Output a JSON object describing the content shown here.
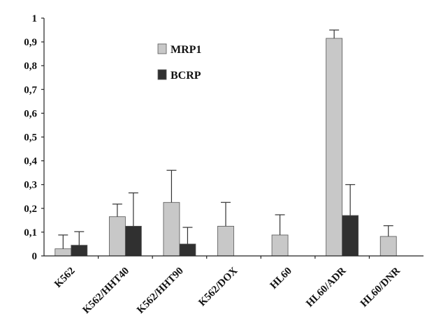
{
  "chart_data": {
    "type": "bar",
    "title": "",
    "xlabel": "",
    "ylabel": "",
    "ylim": [
      0,
      1
    ],
    "yticks": [
      {
        "value": 0,
        "label": "0"
      },
      {
        "value": 0.1,
        "label": "0,1"
      },
      {
        "value": 0.2,
        "label": "0,2"
      },
      {
        "value": 0.3,
        "label": "0,3"
      },
      {
        "value": 0.4,
        "label": "0,4"
      },
      {
        "value": 0.5,
        "label": "0,5"
      },
      {
        "value": 0.6,
        "label": "0,6"
      },
      {
        "value": 0.7,
        "label": "0,7"
      },
      {
        "value": 0.8,
        "label": "0,8"
      },
      {
        "value": 0.9,
        "label": "0,9"
      },
      {
        "value": 1,
        "label": "1"
      }
    ],
    "categories": [
      "K562",
      "K562/HHT40",
      "K562/HHT90",
      "K562/DOX",
      "HL60",
      "HL60/ADR",
      "HL60/DNR"
    ],
    "series": [
      {
        "name": "MRP1",
        "color": "#c8c8c8",
        "values": [
          0.03,
          0.165,
          0.225,
          0.125,
          0.088,
          0.915,
          0.082
        ],
        "errors": [
          0.058,
          0.053,
          0.135,
          0.1,
          0.085,
          0.035,
          0.045
        ]
      },
      {
        "name": "BCRP",
        "color": "#303030",
        "values": [
          0.045,
          0.125,
          0.05,
          0,
          0,
          0.17,
          0
        ],
        "errors": [
          0.057,
          0.14,
          0.07,
          0,
          0,
          0.13,
          0
        ]
      }
    ],
    "legend": {
      "placement": "upper-center"
    },
    "grid": false
  }
}
